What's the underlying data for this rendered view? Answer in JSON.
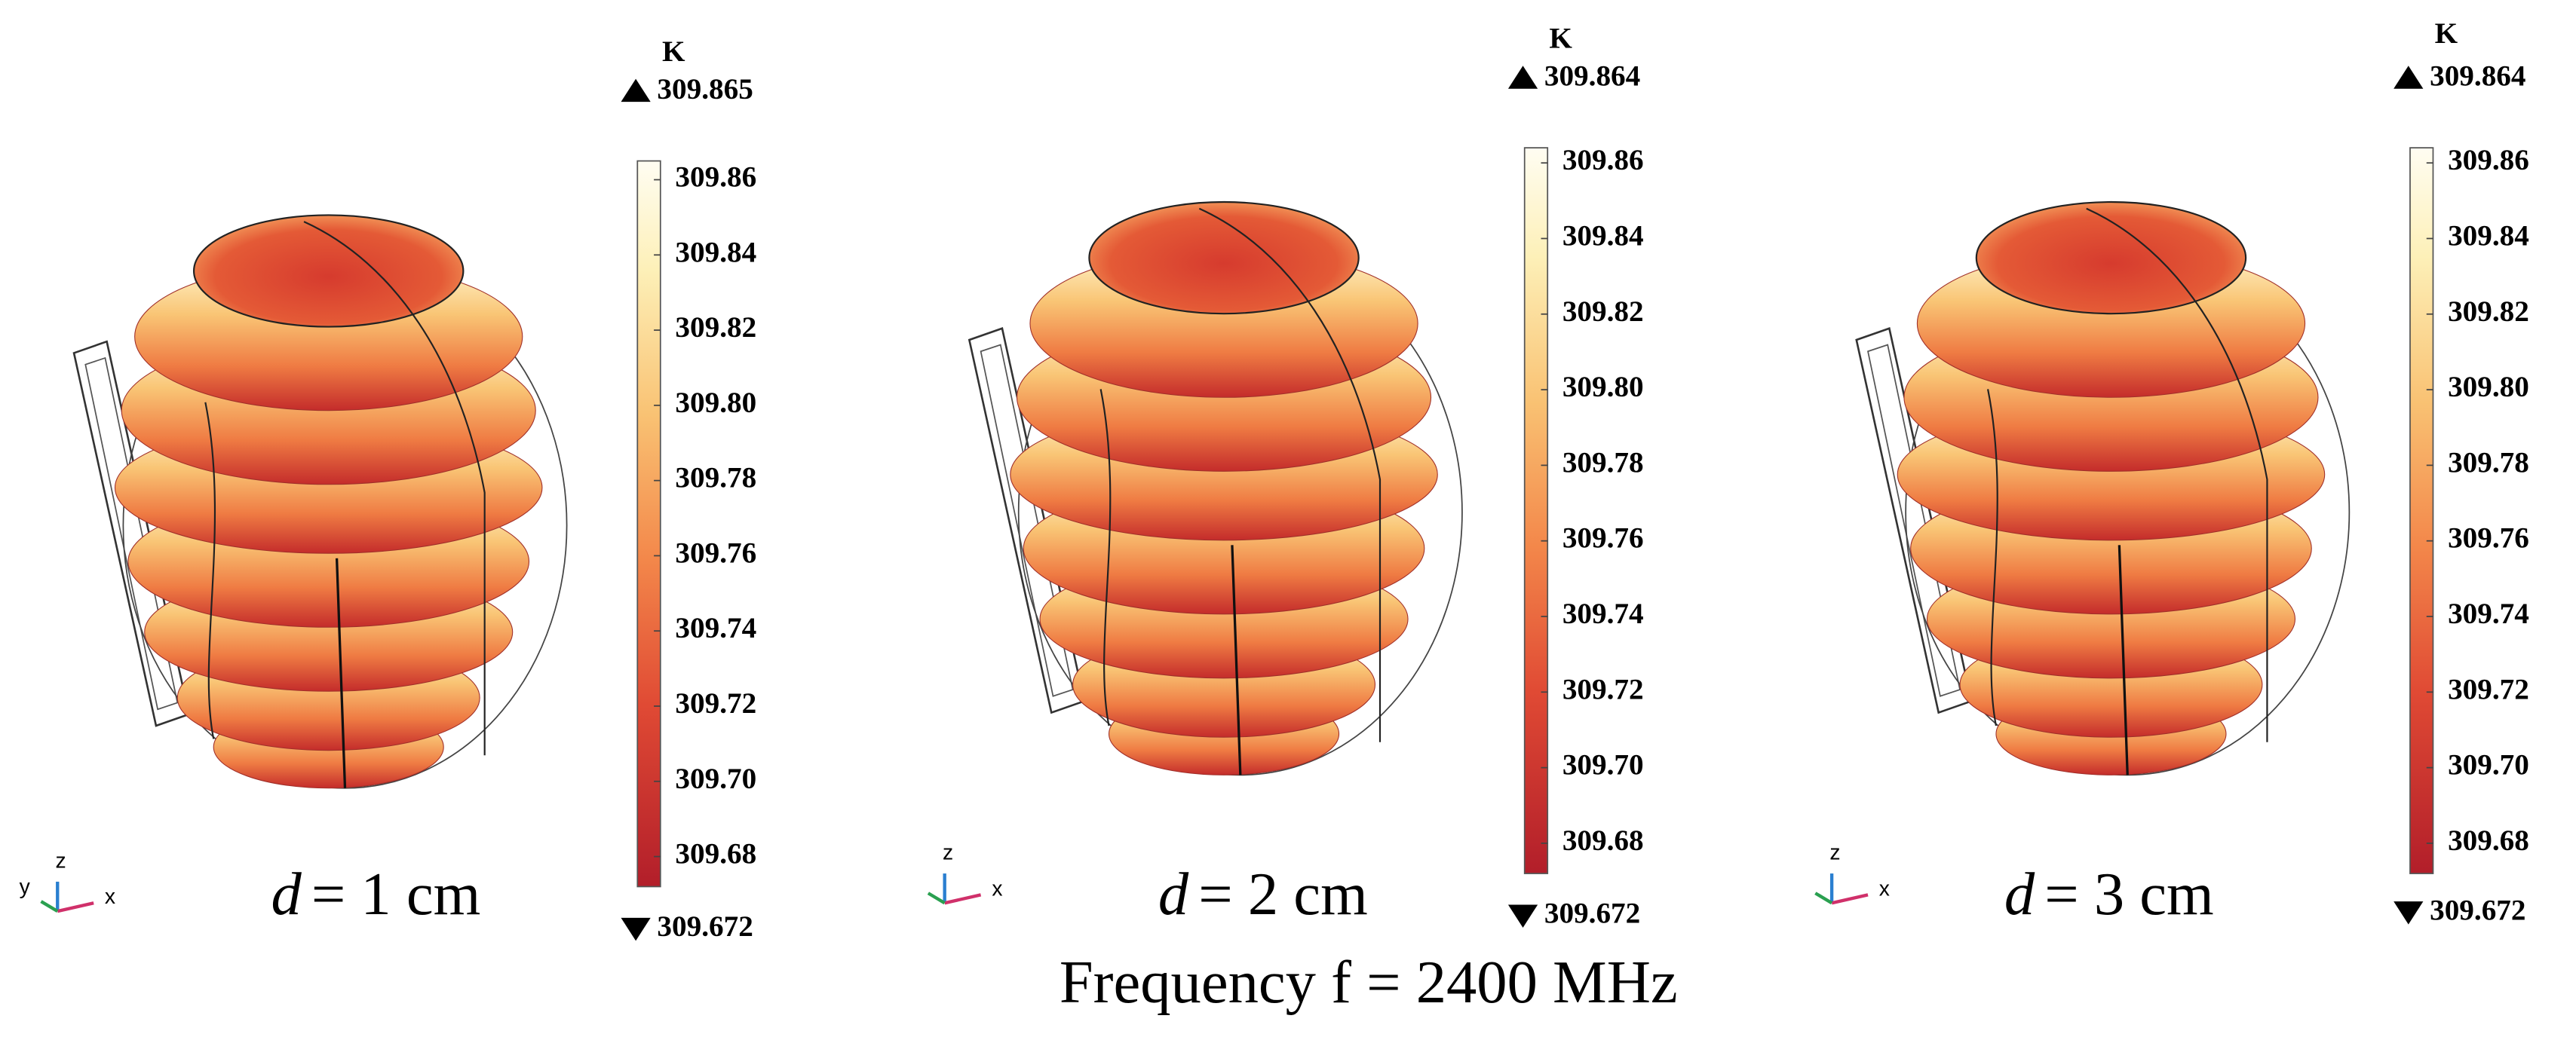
{
  "panels": [
    {
      "unit": "K",
      "max": 309.865,
      "min": 309.672,
      "ticks": [
        309.86,
        309.84,
        309.82,
        {
          "value": 309.8,
          "label": "309.80"
        },
        309.78,
        309.76,
        309.74,
        309.72,
        {
          "value": 309.7,
          "label": "309.70"
        },
        309.68
      ],
      "axes": [
        "y",
        "z",
        "x"
      ],
      "caption_variable": "d",
      "caption_text": "= 1 cm"
    },
    {
      "unit": "K",
      "max": 309.864,
      "min": 309.672,
      "ticks": [
        309.86,
        309.84,
        309.82,
        {
          "value": 309.8,
          "label": "309.80"
        },
        309.78,
        309.76,
        309.74,
        309.72,
        {
          "value": 309.7,
          "label": "309.70"
        },
        309.68
      ],
      "axes": [
        "z",
        "x"
      ],
      "caption_variable": "d",
      "caption_text": "= 2 cm"
    },
    {
      "unit": "K",
      "max": 309.864,
      "min": 309.672,
      "ticks": [
        309.86,
        309.84,
        309.82,
        {
          "value": 309.8,
          "label": "309.80"
        },
        309.78,
        309.76,
        309.74,
        309.72,
        {
          "value": 309.7,
          "label": "309.70"
        },
        309.68
      ],
      "axes": [
        "z",
        "x"
      ],
      "caption_variable": "d",
      "caption_text": "= 3 cm"
    }
  ],
  "footer": "Frequency f = 2400 MHz"
}
